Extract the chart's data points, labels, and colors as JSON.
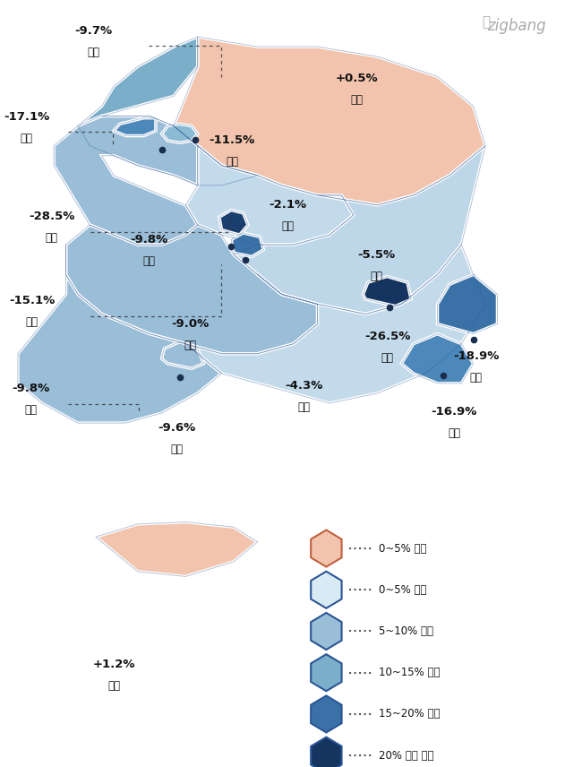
{
  "color_map": {
    "강원": "#F2C4AD",
    "경기": "#7AAEC9",
    "서울": "#8BBAD4",
    "인천": "#4D88BB",
    "세종": "#1A3E6E",
    "충북": "#C2DAEA",
    "충남": "#9ABDD8",
    "대전": "#3A72A8",
    "경북": "#BDD6E8",
    "대구": "#153560",
    "전북": "#9ABDD8",
    "경남": "#C2DAEA",
    "울산": "#3A72A8",
    "부산": "#4D88BB",
    "전남": "#9ABDD8",
    "광주": "#9ABDD8",
    "제주": "#F2C4AD"
  },
  "legend_items": [
    {
      "label": "0~5% 상승",
      "color": "#F2C4AD",
      "edge": "#C06040"
    },
    {
      "label": "0~5% 하락",
      "color": "#D8EBF5",
      "edge": "#2A5595"
    },
    {
      "label": "5~10% 하락",
      "color": "#9ABDD8",
      "edge": "#2A5595"
    },
    {
      "label": "10~15% 하락",
      "color": "#7AAEC9",
      "edge": "#2A5595"
    },
    {
      "label": "15~20% 하락",
      "color": "#3A72A8",
      "edge": "#2A5595"
    },
    {
      "label": "20% 이상 하락",
      "color": "#153560",
      "edge": "#2A5595"
    }
  ],
  "bg_color": "#FFFFFF"
}
